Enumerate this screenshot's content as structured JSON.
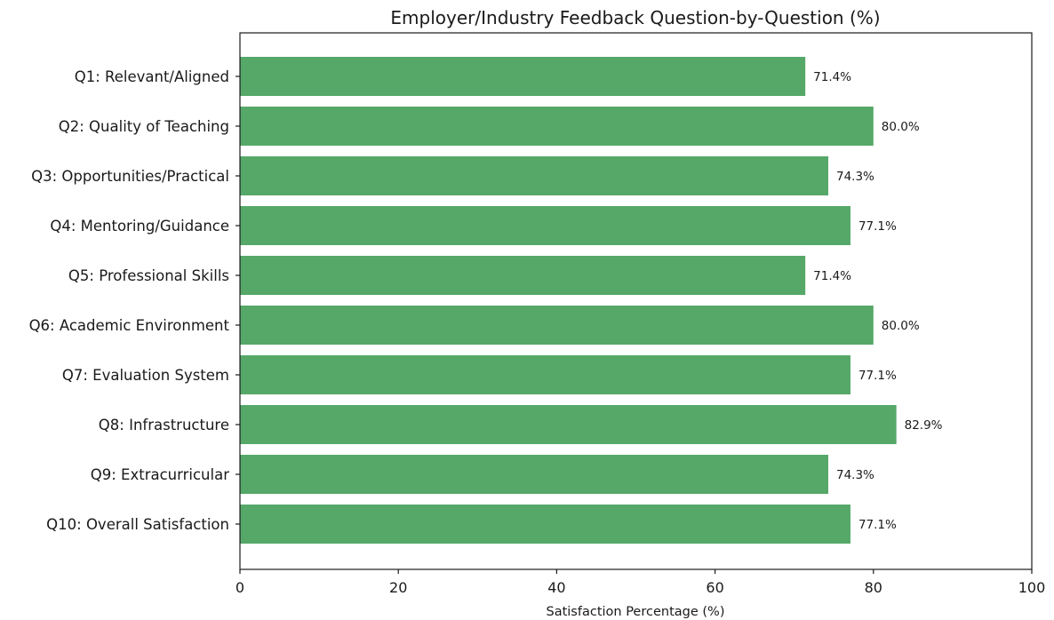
{
  "chart_data": {
    "type": "bar",
    "orientation": "horizontal",
    "title": "Employer/Industry Feedback Question-by-Question (%)",
    "xlabel": "Satisfaction Percentage (%)",
    "ylabel": "",
    "xlim": [
      0,
      100
    ],
    "xticks": [
      0,
      20,
      40,
      60,
      80,
      100
    ],
    "grid": false,
    "bar_color": "#55a868",
    "categories": [
      "Q1: Relevant/Aligned",
      "Q2: Quality of Teaching",
      "Q3: Opportunities/Practical",
      "Q4: Mentoring/Guidance",
      "Q5: Professional Skills",
      "Q6: Academic Environment",
      "Q7: Evaluation System",
      "Q8: Infrastructure",
      "Q9: Extracurricular",
      "Q10: Overall Satisfaction"
    ],
    "values": [
      71.4,
      80.0,
      74.3,
      77.1,
      71.4,
      80.0,
      77.1,
      82.9,
      74.3,
      77.1
    ],
    "data_labels": [
      "71.4%",
      "80.0%",
      "74.3%",
      "77.1%",
      "71.4%",
      "80.0%",
      "77.1%",
      "82.9%",
      "74.3%",
      "77.1%"
    ]
  }
}
